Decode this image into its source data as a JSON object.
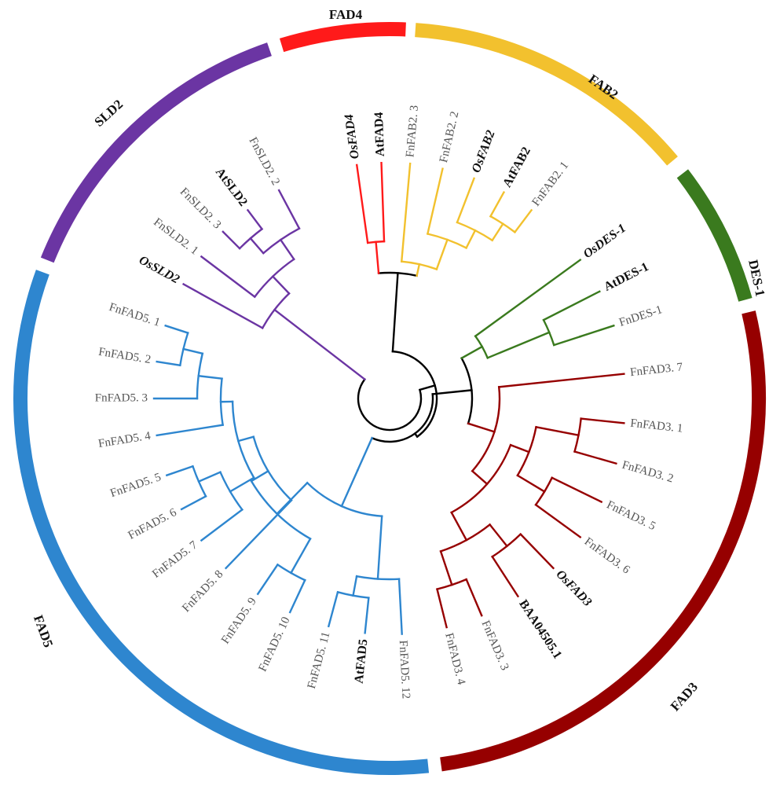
{
  "colors": {
    "FAD4": "#ff1a1a",
    "FAB2": "#f2c12e",
    "DES-1": "#3a7a1e",
    "FAD3": "#960000",
    "FAD5": "#2e86cf",
    "SLD2": "#6b35a3",
    "root": "#000000"
  },
  "clades": [
    {
      "id": "FAD4",
      "label": "FAD4"
    },
    {
      "id": "FAB2",
      "label": "FAB2"
    },
    {
      "id": "DES-1",
      "label": "DES-1"
    },
    {
      "id": "FAD3",
      "label": "FAD3"
    },
    {
      "id": "FAD5",
      "label": "FAD5"
    },
    {
      "id": "SLD2",
      "label": "SLD2"
    }
  ],
  "leaves": [
    {
      "id": "OsFAD4",
      "label": "OsFAD4",
      "clade": "FAD4",
      "ref": true,
      "italic": true
    },
    {
      "id": "AtFAD4",
      "label": "AtFAD4",
      "clade": "FAD4",
      "ref": true
    },
    {
      "id": "FnFAB2_3",
      "label": "FnFAB2. 3",
      "clade": "FAB2"
    },
    {
      "id": "FnFAB2_2",
      "label": "FnFAB2. 2",
      "clade": "FAB2"
    },
    {
      "id": "OsFAB2",
      "label": "OsFAB2",
      "clade": "FAB2",
      "ref": true,
      "italic": true
    },
    {
      "id": "AtFAB2",
      "label": "AtFAB2",
      "clade": "FAB2",
      "ref": true
    },
    {
      "id": "FnFAB2_1",
      "label": "FnFAB2. 1",
      "clade": "FAB2"
    },
    {
      "id": "OsDES1",
      "label": "OsDES-1",
      "clade": "DES-1",
      "ref": true,
      "italic": true
    },
    {
      "id": "AtDES1",
      "label": "AtDES-1",
      "clade": "DES-1",
      "ref": true
    },
    {
      "id": "FnDES1",
      "label": "FnDES-1",
      "clade": "DES-1"
    },
    {
      "id": "FnFAD3_7",
      "label": "FnFAD3. 7",
      "clade": "FAD3"
    },
    {
      "id": "FnFAD3_1",
      "label": "FnFAD3. 1",
      "clade": "FAD3"
    },
    {
      "id": "FnFAD3_2",
      "label": "FnFAD3. 2",
      "clade": "FAD3"
    },
    {
      "id": "FnFAD3_5",
      "label": "FnFAD3. 5",
      "clade": "FAD3"
    },
    {
      "id": "FnFAD3_6",
      "label": "FnFAD3. 6",
      "clade": "FAD3"
    },
    {
      "id": "OsFAD3",
      "label": "OsFAD3",
      "clade": "FAD3",
      "ref": true,
      "italic": true
    },
    {
      "id": "BAA04505",
      "label": "BAA04505.1",
      "clade": "FAD3",
      "ref": true
    },
    {
      "id": "FnFAD3_3",
      "label": "FnFAD3. 3",
      "clade": "FAD3"
    },
    {
      "id": "FnFAD3_4",
      "label": "FnFAD3. 4",
      "clade": "FAD3"
    },
    {
      "id": "FnFAD5_12",
      "label": "FnFAD5. 12",
      "clade": "FAD5"
    },
    {
      "id": "AtFAD5",
      "label": "AtFAD5",
      "clade": "FAD5",
      "ref": true
    },
    {
      "id": "FnFAD5_11",
      "label": "FnFAD5. 11",
      "clade": "FAD5"
    },
    {
      "id": "FnFAD5_10",
      "label": "FnFAD5. 10",
      "clade": "FAD5"
    },
    {
      "id": "FnFAD5_9",
      "label": "FnFAD5. 9",
      "clade": "FAD5"
    },
    {
      "id": "FnFAD5_8",
      "label": "FnFAD5. 8",
      "clade": "FAD5"
    },
    {
      "id": "FnFAD5_7",
      "label": "FnFAD5. 7",
      "clade": "FAD5"
    },
    {
      "id": "FnFAD5_6",
      "label": "FnFAD5. 6",
      "clade": "FAD5"
    },
    {
      "id": "FnFAD5_5",
      "label": "FnFAD5. 5",
      "clade": "FAD5"
    },
    {
      "id": "FnFAD5_4",
      "label": "FnFAD5. 4",
      "clade": "FAD5"
    },
    {
      "id": "FnFAD5_3",
      "label": "FnFAD5. 3",
      "clade": "FAD5"
    },
    {
      "id": "FnFAD5_2",
      "label": "FnFAD5. 2",
      "clade": "FAD5"
    },
    {
      "id": "FnFAD5_1",
      "label": "FnFAD5. 1",
      "clade": "FAD5"
    },
    {
      "id": "OsSLD2",
      "label": "OsSLD2",
      "clade": "SLD2",
      "ref": true,
      "italic": true
    },
    {
      "id": "FnSLD2_1",
      "label": "FnSLD2. 1",
      "clade": "SLD2"
    },
    {
      "id": "FnSLD2_3",
      "label": "FnSLD2. 3",
      "clade": "SLD2"
    },
    {
      "id": "AtSLD2",
      "label": "AtSLD2",
      "clade": "SLD2",
      "ref": true
    },
    {
      "id": "FnSLD2_2",
      "label": "FnSLD2. 2",
      "clade": "SLD2"
    }
  ]
}
